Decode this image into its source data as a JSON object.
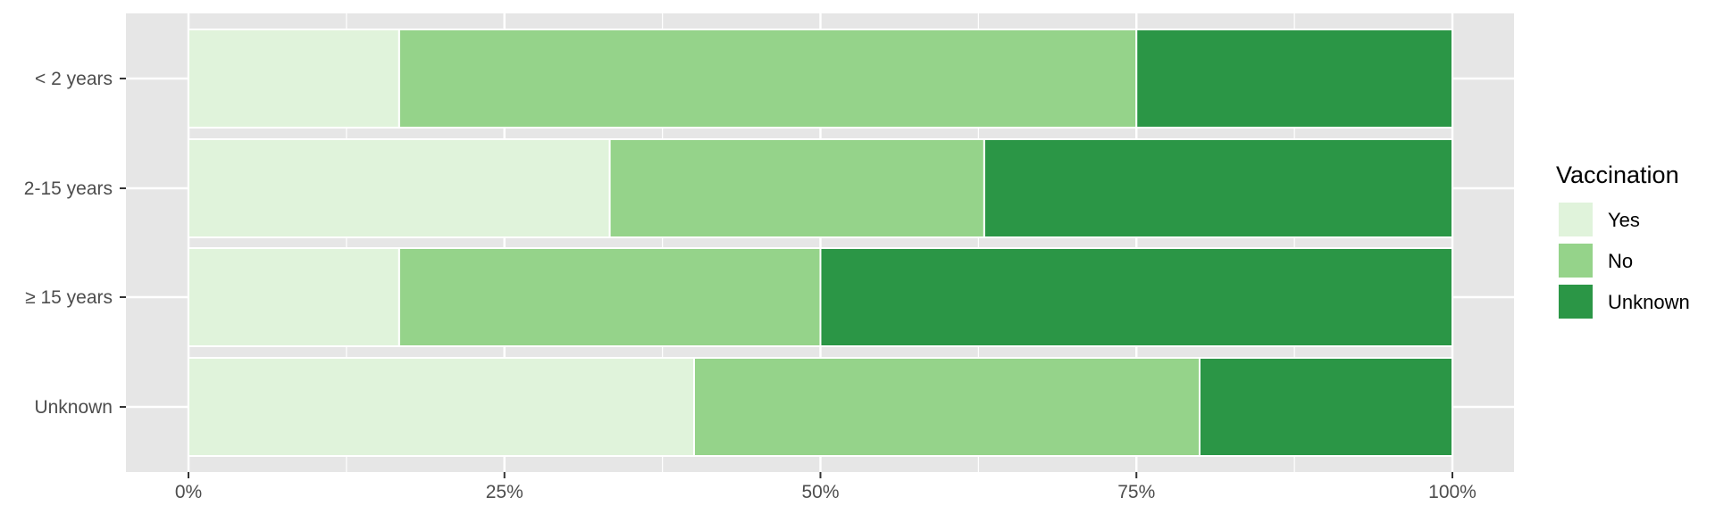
{
  "chart_data": {
    "type": "bar",
    "orientation": "horizontal",
    "stacked": "percent",
    "categories": [
      "< 2 years",
      "2-15 years",
      "≥ 15 years",
      "Unknown"
    ],
    "series": [
      {
        "name": "Yes",
        "color": "#e0f3db",
        "values": [
          0.1667,
          0.3333,
          0.1667,
          0.4
        ]
      },
      {
        "name": "No",
        "color": "#95d38a",
        "values": [
          0.5833,
          0.2963,
          0.3333,
          0.4
        ]
      },
      {
        "name": "Unknown",
        "color": "#2b9646",
        "values": [
          0.25,
          0.3704,
          0.5,
          0.2
        ]
      }
    ],
    "x_ticks": [
      "0%",
      "25%",
      "50%",
      "75%",
      "100%"
    ],
    "xlim": [
      0,
      1
    ],
    "title": "",
    "xlabel": "",
    "ylabel": "",
    "legend": {
      "title": "Vaccination",
      "position": "right"
    },
    "grid": true,
    "panel_background": "#e6e6e6",
    "grid_color": "#ffffff"
  }
}
